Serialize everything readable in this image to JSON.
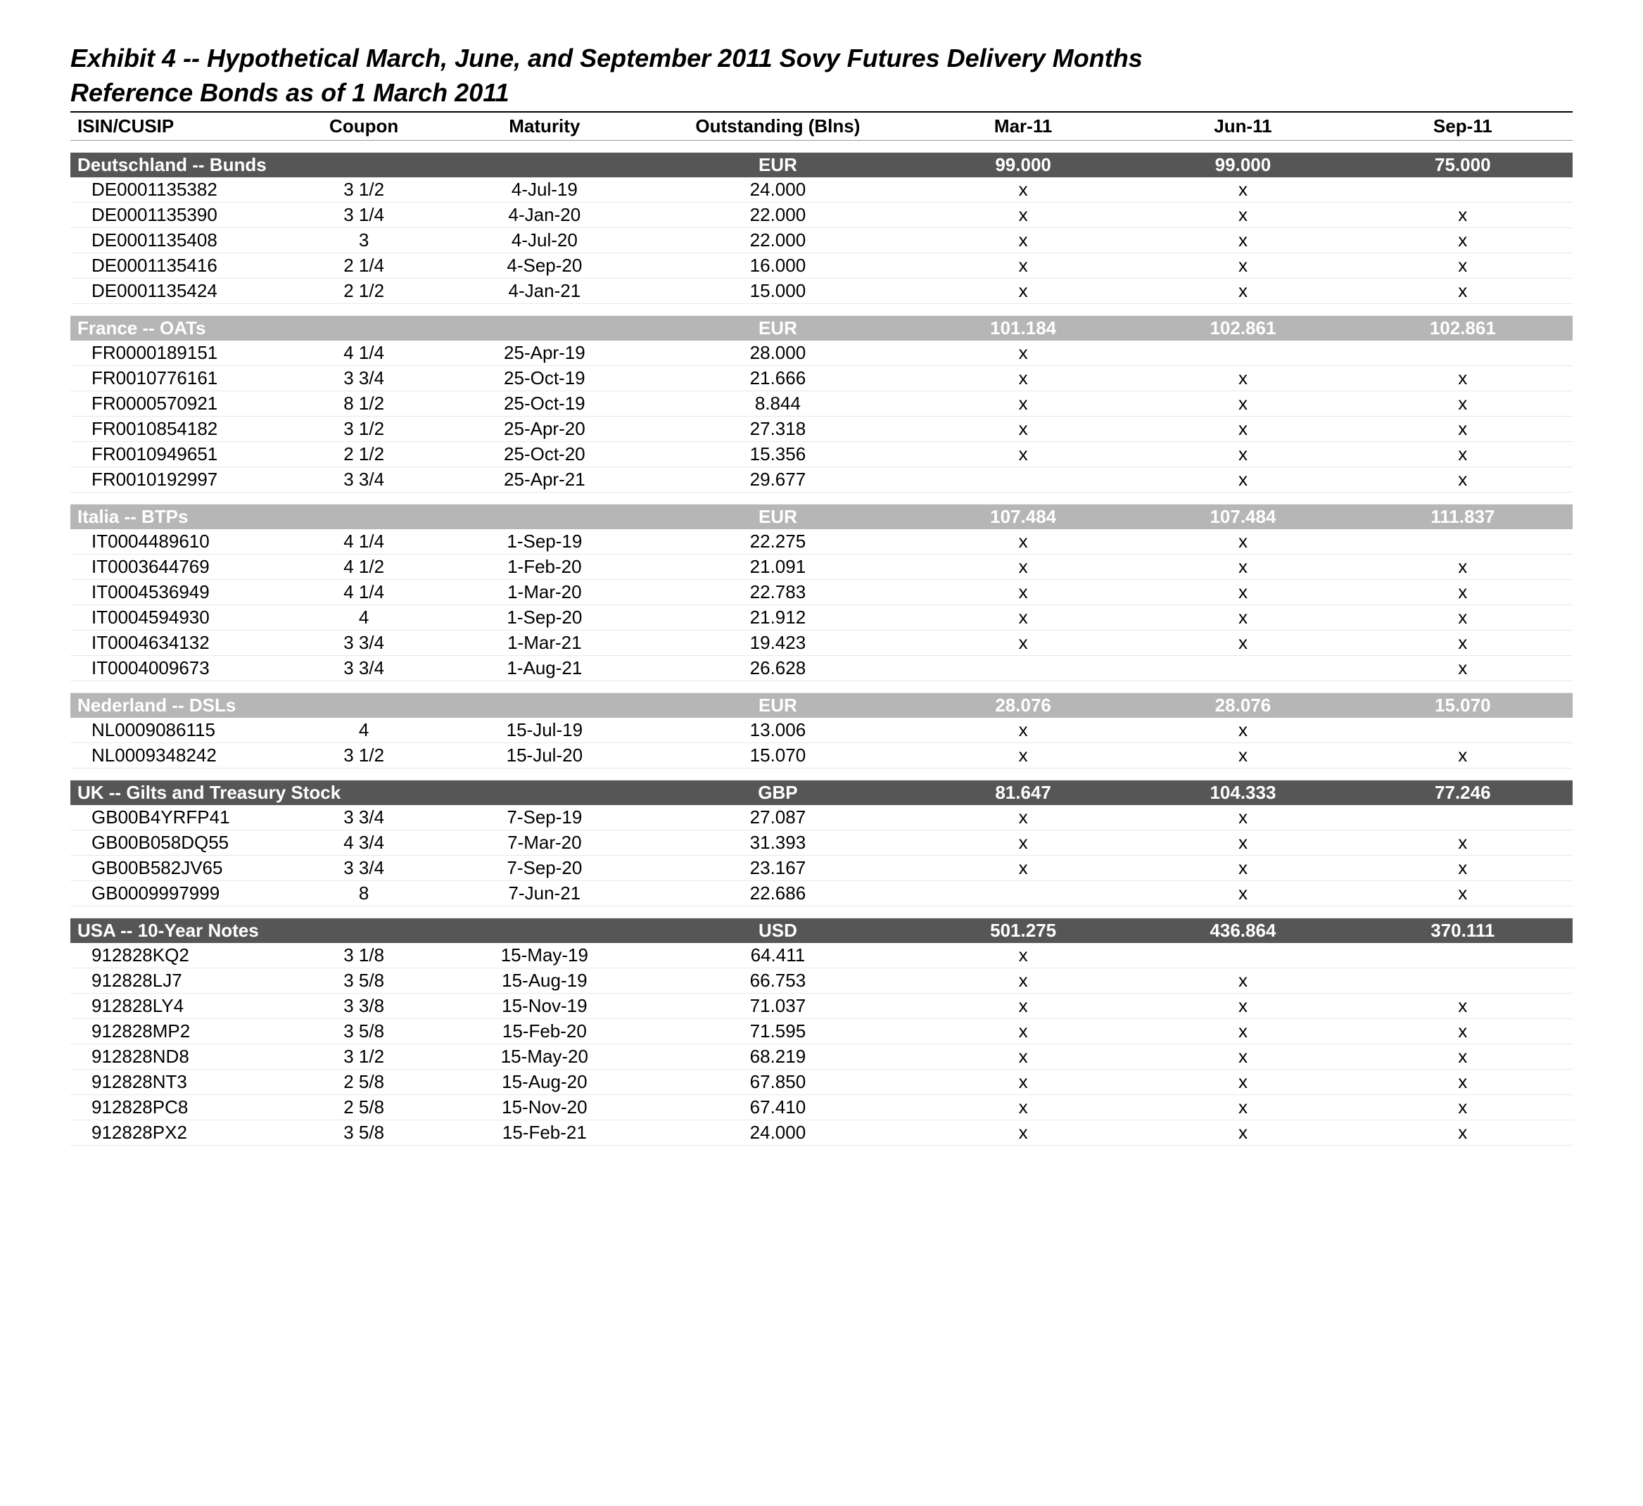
{
  "title_line1": "Exhibit 4 -- Hypothetical March, June, and September 2011 Sovy Futures Delivery Months",
  "title_line2": "Reference Bonds as of 1 March 2011",
  "columns": [
    "ISIN/CUSIP",
    "Coupon",
    "Maturity",
    "Outstanding (Blns)",
    "Mar-11",
    "Jun-11",
    "Sep-11"
  ],
  "colors": {
    "dark": "#565656",
    "light": "#b6b6b6",
    "text_on_dark": "#ffffff",
    "text_on_light": "#000000"
  },
  "sections": [
    {
      "name": "Deutschland -- Bunds",
      "currency": "EUR",
      "shade": "dark",
      "totals": [
        "99.000",
        "99.000",
        "75.000"
      ],
      "rows": [
        [
          "DE0001135382",
          "3 1/2",
          "4-Jul-19",
          "24.000",
          "x",
          "x",
          ""
        ],
        [
          "DE0001135390",
          "3 1/4",
          "4-Jan-20",
          "22.000",
          "x",
          "x",
          "x"
        ],
        [
          "DE0001135408",
          "3",
          "4-Jul-20",
          "22.000",
          "x",
          "x",
          "x"
        ],
        [
          "DE0001135416",
          "2 1/4",
          "4-Sep-20",
          "16.000",
          "x",
          "x",
          "x"
        ],
        [
          "DE0001135424",
          "2 1/2",
          "4-Jan-21",
          "15.000",
          "x",
          "x",
          "x"
        ]
      ]
    },
    {
      "name": "France -- OATs",
      "currency": "EUR",
      "shade": "light",
      "totals": [
        "101.184",
        "102.861",
        "102.861"
      ],
      "rows": [
        [
          "FR0000189151",
          "4 1/4",
          "25-Apr-19",
          "28.000",
          "x",
          "",
          ""
        ],
        [
          "FR0010776161",
          "3 3/4",
          "25-Oct-19",
          "21.666",
          "x",
          "x",
          "x"
        ],
        [
          "FR0000570921",
          "8 1/2",
          "25-Oct-19",
          "8.844",
          "x",
          "x",
          "x"
        ],
        [
          "FR0010854182",
          "3 1/2",
          "25-Apr-20",
          "27.318",
          "x",
          "x",
          "x"
        ],
        [
          "FR0010949651",
          "2 1/2",
          "25-Oct-20",
          "15.356",
          "x",
          "x",
          "x"
        ],
        [
          "FR0010192997",
          "3 3/4",
          "25-Apr-21",
          "29.677",
          "",
          "x",
          "x"
        ]
      ]
    },
    {
      "name": "Italia -- BTPs",
      "currency": "EUR",
      "shade": "light",
      "totals": [
        "107.484",
        "107.484",
        "111.837"
      ],
      "rows": [
        [
          "IT0004489610",
          "4 1/4",
          "1-Sep-19",
          "22.275",
          "x",
          "x",
          ""
        ],
        [
          "IT0003644769",
          "4 1/2",
          "1-Feb-20",
          "21.091",
          "x",
          "x",
          "x"
        ],
        [
          "IT0004536949",
          "4 1/4",
          "1-Mar-20",
          "22.783",
          "x",
          "x",
          "x"
        ],
        [
          "IT0004594930",
          "4",
          "1-Sep-20",
          "21.912",
          "x",
          "x",
          "x"
        ],
        [
          "IT0004634132",
          "3 3/4",
          "1-Mar-21",
          "19.423",
          "x",
          "x",
          "x"
        ],
        [
          "IT0004009673",
          "3 3/4",
          "1-Aug-21",
          "26.628",
          "",
          "",
          "x"
        ]
      ]
    },
    {
      "name": "Nederland -- DSLs",
      "currency": "EUR",
      "shade": "light",
      "totals": [
        "28.076",
        "28.076",
        "15.070"
      ],
      "rows": [
        [
          "NL0009086115",
          "4",
          "15-Jul-19",
          "13.006",
          "x",
          "x",
          ""
        ],
        [
          "NL0009348242",
          "3 1/2",
          "15-Jul-20",
          "15.070",
          "x",
          "x",
          "x"
        ]
      ]
    },
    {
      "name": "UK -- Gilts and Treasury Stock",
      "currency": "GBP",
      "shade": "dark",
      "totals": [
        "81.647",
        "104.333",
        "77.246"
      ],
      "rows": [
        [
          "GB00B4YRFP41",
          "3 3/4",
          "7-Sep-19",
          "27.087",
          "x",
          "x",
          ""
        ],
        [
          "GB00B058DQ55",
          "4 3/4",
          "7-Mar-20",
          "31.393",
          "x",
          "x",
          "x"
        ],
        [
          "GB00B582JV65",
          "3 3/4",
          "7-Sep-20",
          "23.167",
          "x",
          "x",
          "x"
        ],
        [
          "GB0009997999",
          "8",
          "7-Jun-21",
          "22.686",
          "",
          "x",
          "x"
        ]
      ]
    },
    {
      "name": "USA -- 10-Year Notes",
      "currency": "USD",
      "shade": "dark",
      "totals": [
        "501.275",
        "436.864",
        "370.111"
      ],
      "rows": [
        [
          "912828KQ2",
          "3 1/8",
          "15-May-19",
          "64.411",
          "x",
          "",
          ""
        ],
        [
          "912828LJ7",
          "3 5/8",
          "15-Aug-19",
          "66.753",
          "x",
          "x",
          ""
        ],
        [
          "912828LY4",
          "3 3/8",
          "15-Nov-19",
          "71.037",
          "x",
          "x",
          "x"
        ],
        [
          "912828MP2",
          "3 5/8",
          "15-Feb-20",
          "71.595",
          "x",
          "x",
          "x"
        ],
        [
          "912828ND8",
          "3 1/2",
          "15-May-20",
          "68.219",
          "x",
          "x",
          "x"
        ],
        [
          "912828NT3",
          "2 5/8",
          "15-Aug-20",
          "67.850",
          "x",
          "x",
          "x"
        ],
        [
          "912828PC8",
          "2 5/8",
          "15-Nov-20",
          "67.410",
          "x",
          "x",
          "x"
        ],
        [
          "912828PX2",
          "3 5/8",
          "15-Feb-21",
          "24.000",
          "x",
          "x",
          "x"
        ]
      ]
    }
  ]
}
